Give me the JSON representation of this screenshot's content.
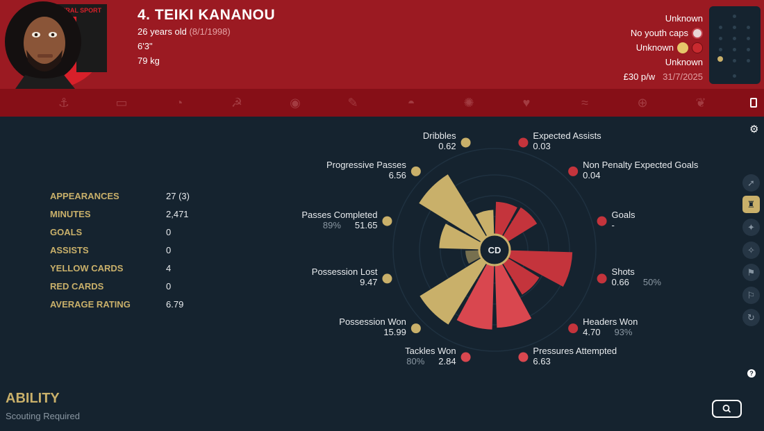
{
  "player": {
    "name": "4. TEIKI KANANOU",
    "age": "26 years old",
    "dob": "(8/1/1998)",
    "height": "6'3\"",
    "weight": "79 kg",
    "club_badge_text": "CENTRAL SPORT"
  },
  "header_right": {
    "nationality": "Unknown",
    "youth_caps": "No youth caps",
    "personality": "Unknown",
    "media": "Unknown",
    "wage": "£30 p/w",
    "contract_end": "31/7/2025"
  },
  "colors": {
    "header": "#9b1a22",
    "strip": "#860f17",
    "background": "#15232f",
    "gold": "#c9b06a",
    "red": "#c4343c",
    "red_light": "#d9474f"
  },
  "icon_strip": [
    "anchor-icon",
    "id-card-icon",
    "ear-icon",
    "hammer-sickle-icon",
    "eye-icon",
    "dash-icon",
    "helmet-icon",
    "burst-icon",
    "heart-hand-icon",
    "wave-icon",
    "globe-icon",
    "dragon-icon"
  ],
  "stats": [
    {
      "label": "APPEARANCES",
      "value": "27 (3)"
    },
    {
      "label": "MINUTES",
      "value": "2,471"
    },
    {
      "label": "GOALS",
      "value": "0"
    },
    {
      "label": "ASSISTS",
      "value": "0"
    },
    {
      "label": "YELLOW CARDS",
      "value": "4"
    },
    {
      "label": "RED CARDS",
      "value": "0"
    },
    {
      "label": "AVERAGE RATING",
      "value": "6.79"
    }
  ],
  "chart_data": {
    "type": "radar",
    "center_label": "CD",
    "metrics": [
      {
        "name": "Dribbles",
        "value": "0.62",
        "percentile": 0.32,
        "group": "gold"
      },
      {
        "name": "Expected Assists",
        "value": "0.03",
        "percentile": 0.41,
        "group": "red"
      },
      {
        "name": "Non Penalty Expected Goals",
        "value": "0.04",
        "percentile": 0.43,
        "group": "red"
      },
      {
        "name": "Goals",
        "value": "-",
        "percentile": 0.0,
        "group": "red"
      },
      {
        "name": "Shots",
        "value": "0.66",
        "extra": "50%",
        "percentile": 0.74,
        "group": "red"
      },
      {
        "name": "Headers Won",
        "value": "4.70",
        "extra": "93%",
        "percentile": 0.46,
        "group": "red"
      },
      {
        "name": "Pressures Attempted",
        "value": "6.63",
        "percentile": 0.74,
        "group": "red_light"
      },
      {
        "name": "Tackles Won",
        "value": "2.84",
        "extra": "80%",
        "percentile": 0.76,
        "group": "red_light"
      },
      {
        "name": "Possession Won",
        "value": "15.99",
        "percentile": 0.85,
        "group": "gold"
      },
      {
        "name": "Possession Lost",
        "value": "9.47",
        "percentile": 0.2,
        "group": "gold"
      },
      {
        "name": "Passes Completed",
        "value": "51.65",
        "extra": "89%",
        "percentile": 0.49,
        "group": "gold"
      },
      {
        "name": "Progressive Passes",
        "value": "6.56",
        "percentile": 0.86,
        "group": "gold"
      }
    ]
  },
  "sidebar_icons": [
    "tackle-icon",
    "stand-icon",
    "dribble-icon",
    "run-icon",
    "pass-icon",
    "kick-icon",
    "refresh-icon"
  ],
  "ability": {
    "title": "ABILITY",
    "subtitle": "Scouting Required"
  }
}
